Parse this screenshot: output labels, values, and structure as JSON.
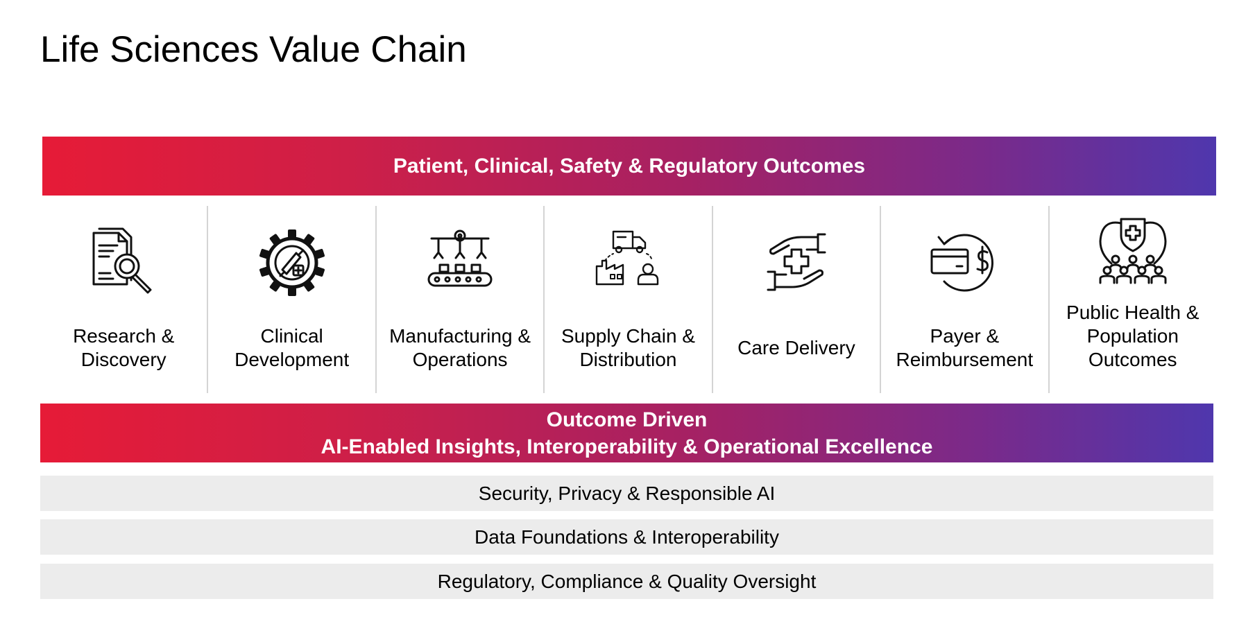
{
  "title": "Life Sciences Value Chain",
  "top_banner": "Patient, Clinical, Safety & Regulatory Outcomes",
  "stages": [
    {
      "label": "Research &\nDiscovery",
      "icon": "document-search-icon"
    },
    {
      "label": "Clinical\nDevelopment",
      "icon": "gear-vaccine-icon"
    },
    {
      "label": "Manufacturing &\nOperations",
      "icon": "robotic-assembly-line-icon"
    },
    {
      "label": "Supply Chain &\nDistribution",
      "icon": "truck-factory-person-icon"
    },
    {
      "label": "Care Delivery",
      "icon": "hands-medical-cross-icon"
    },
    {
      "label": "Payer &\nReimbursement",
      "icon": "card-dollar-refund-icon"
    },
    {
      "label": "Public Health &\nPopulation\nOutcomes",
      "icon": "shield-population-icon"
    }
  ],
  "mid_banner": {
    "line1": "Outcome Driven",
    "line2": "AI-Enabled Insights, Interoperability & Operational Excellence"
  },
  "foundation_bars": [
    "Security, Privacy & Responsible AI",
    "Data Foundations & Interoperability",
    "Regulatory, Compliance & Quality Oversight"
  ],
  "colors": {
    "gradient_start": "#e61b37",
    "gradient_end": "#4f37ad",
    "bar_background": "#ececec",
    "divider": "#d4d4d4"
  }
}
